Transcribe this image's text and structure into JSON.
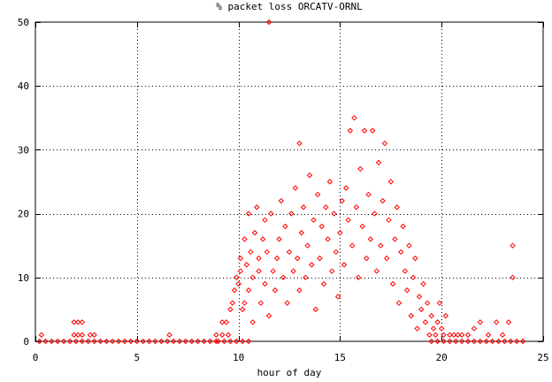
{
  "chart_data": {
    "type": "scatter",
    "title": "% packet loss ORCATV-ORNL",
    "xlabel": "hour of day",
    "ylabel": "",
    "xlim": [
      0,
      25
    ],
    "ylim": [
      0,
      50
    ],
    "xticks": [
      0,
      5,
      10,
      15,
      20,
      25
    ],
    "yticks": [
      0,
      10,
      20,
      30,
      40,
      50
    ],
    "xtick_labels": [
      "0",
      "5",
      "10",
      "15",
      "20",
      "25"
    ],
    "ytick_labels": [
      "0",
      "10",
      "20",
      "30",
      "40",
      "50"
    ],
    "grid": true,
    "marker": "diamond",
    "color": "#ff0000",
    "series": [
      {
        "points": [
          [
            0.2,
            0
          ],
          [
            0.5,
            0
          ],
          [
            0.8,
            0
          ],
          [
            1.1,
            0
          ],
          [
            1.4,
            0
          ],
          [
            1.7,
            0
          ],
          [
            2.0,
            0
          ],
          [
            2.3,
            0
          ],
          [
            2.6,
            0
          ],
          [
            2.9,
            0
          ],
          [
            3.2,
            0
          ],
          [
            3.5,
            0
          ],
          [
            3.8,
            0
          ],
          [
            4.1,
            0
          ],
          [
            4.4,
            0
          ],
          [
            4.7,
            0
          ],
          [
            5.0,
            0
          ],
          [
            5.3,
            0
          ],
          [
            5.6,
            0
          ],
          [
            5.9,
            0
          ],
          [
            6.2,
            0
          ],
          [
            6.5,
            0
          ],
          [
            6.8,
            0
          ],
          [
            7.1,
            0
          ],
          [
            7.4,
            0
          ],
          [
            7.7,
            0
          ],
          [
            8.0,
            0
          ],
          [
            8.3,
            0
          ],
          [
            8.6,
            0
          ],
          [
            8.9,
            0
          ],
          [
            0.3,
            1
          ],
          [
            1.9,
            1
          ],
          [
            2.1,
            1
          ],
          [
            2.3,
            1
          ],
          [
            2.7,
            1
          ],
          [
            2.9,
            1
          ],
          [
            1.9,
            3
          ],
          [
            2.1,
            3
          ],
          [
            2.3,
            3
          ],
          [
            6.6,
            1
          ],
          [
            8.9,
            1
          ],
          [
            9.2,
            1
          ],
          [
            9.5,
            1
          ],
          [
            9.2,
            3
          ],
          [
            9.4,
            3
          ],
          [
            9.6,
            5
          ],
          [
            9.7,
            6
          ],
          [
            9.8,
            8
          ],
          [
            9.9,
            10
          ],
          [
            10.0,
            9
          ],
          [
            10.1,
            11
          ],
          [
            10.1,
            13
          ],
          [
            10.2,
            5
          ],
          [
            10.3,
            6
          ],
          [
            10.3,
            16
          ],
          [
            10.4,
            12
          ],
          [
            10.5,
            8
          ],
          [
            10.5,
            20
          ],
          [
            10.6,
            14
          ],
          [
            10.7,
            3
          ],
          [
            10.7,
            10
          ],
          [
            10.8,
            17
          ],
          [
            10.9,
            21
          ],
          [
            11.0,
            11
          ],
          [
            11.0,
            13
          ],
          [
            11.1,
            6
          ],
          [
            11.2,
            16
          ],
          [
            11.3,
            9
          ],
          [
            11.3,
            19
          ],
          [
            11.4,
            14
          ],
          [
            11.5,
            4
          ],
          [
            11.5,
            50
          ],
          [
            11.6,
            20
          ],
          [
            11.7,
            11
          ],
          [
            11.8,
            8
          ],
          [
            11.9,
            13
          ],
          [
            12.0,
            16
          ],
          [
            12.1,
            22
          ],
          [
            12.2,
            10
          ],
          [
            12.3,
            18
          ],
          [
            12.4,
            6
          ],
          [
            12.5,
            14
          ],
          [
            12.6,
            20
          ],
          [
            12.7,
            11
          ],
          [
            12.8,
            24
          ],
          [
            12.9,
            13
          ],
          [
            13.0,
            8
          ],
          [
            13.0,
            31
          ],
          [
            13.1,
            17
          ],
          [
            13.2,
            21
          ],
          [
            13.3,
            10
          ],
          [
            13.4,
            15
          ],
          [
            13.5,
            26
          ],
          [
            13.6,
            12
          ],
          [
            13.7,
            19
          ],
          [
            13.8,
            5
          ],
          [
            13.9,
            23
          ],
          [
            14.0,
            13
          ],
          [
            14.1,
            18
          ],
          [
            14.2,
            9
          ],
          [
            14.3,
            21
          ],
          [
            14.4,
            16
          ],
          [
            14.5,
            25
          ],
          [
            14.6,
            11
          ],
          [
            14.7,
            20
          ],
          [
            14.8,
            14
          ],
          [
            14.9,
            7
          ],
          [
            15.0,
            17
          ],
          [
            15.1,
            22
          ],
          [
            15.2,
            12
          ],
          [
            15.3,
            24
          ],
          [
            15.4,
            19
          ],
          [
            15.5,
            33
          ],
          [
            15.6,
            15
          ],
          [
            15.7,
            35
          ],
          [
            15.8,
            21
          ],
          [
            15.9,
            10
          ],
          [
            16.0,
            27
          ],
          [
            16.1,
            18
          ],
          [
            16.2,
            33
          ],
          [
            16.3,
            13
          ],
          [
            16.4,
            23
          ],
          [
            16.5,
            16
          ],
          [
            16.6,
            33
          ],
          [
            16.7,
            20
          ],
          [
            16.8,
            11
          ],
          [
            16.9,
            28
          ],
          [
            17.0,
            15
          ],
          [
            17.1,
            22
          ],
          [
            17.2,
            31
          ],
          [
            17.3,
            13
          ],
          [
            17.4,
            19
          ],
          [
            17.5,
            25
          ],
          [
            17.6,
            9
          ],
          [
            17.7,
            16
          ],
          [
            17.8,
            21
          ],
          [
            17.9,
            6
          ],
          [
            18.0,
            14
          ],
          [
            18.1,
            18
          ],
          [
            18.2,
            11
          ],
          [
            18.3,
            8
          ],
          [
            18.4,
            15
          ],
          [
            18.5,
            4
          ],
          [
            18.6,
            10
          ],
          [
            18.7,
            13
          ],
          [
            18.8,
            2
          ],
          [
            18.9,
            7
          ],
          [
            19.0,
            5
          ],
          [
            19.1,
            9
          ],
          [
            19.2,
            3
          ],
          [
            19.3,
            6
          ],
          [
            19.4,
            1
          ],
          [
            19.5,
            4
          ],
          [
            19.6,
            2
          ],
          [
            19.7,
            1
          ],
          [
            19.8,
            3
          ],
          [
            19.9,
            6
          ],
          [
            20.0,
            2
          ],
          [
            20.1,
            1
          ],
          [
            20.2,
            4
          ],
          [
            20.4,
            1
          ],
          [
            20.6,
            1
          ],
          [
            20.8,
            1
          ],
          [
            21.0,
            1
          ],
          [
            21.3,
            1
          ],
          [
            21.6,
            2
          ],
          [
            21.9,
            3
          ],
          [
            22.3,
            1
          ],
          [
            22.7,
            3
          ],
          [
            23.0,
            1
          ],
          [
            23.3,
            3
          ],
          [
            23.5,
            15
          ],
          [
            23.5,
            10
          ],
          [
            9.0,
            0
          ],
          [
            9.3,
            0
          ],
          [
            9.6,
            0
          ],
          [
            9.9,
            0
          ],
          [
            10.2,
            0
          ],
          [
            10.5,
            0
          ],
          [
            19.5,
            0
          ],
          [
            19.8,
            0
          ],
          [
            20.1,
            0
          ],
          [
            20.4,
            0
          ],
          [
            20.7,
            0
          ],
          [
            21.0,
            0
          ],
          [
            21.3,
            0
          ],
          [
            21.6,
            0
          ],
          [
            21.9,
            0
          ],
          [
            22.2,
            0
          ],
          [
            22.5,
            0
          ],
          [
            22.8,
            0
          ],
          [
            23.1,
            0
          ],
          [
            23.4,
            0
          ],
          [
            23.7,
            0
          ],
          [
            24.0,
            0
          ]
        ]
      }
    ]
  }
}
